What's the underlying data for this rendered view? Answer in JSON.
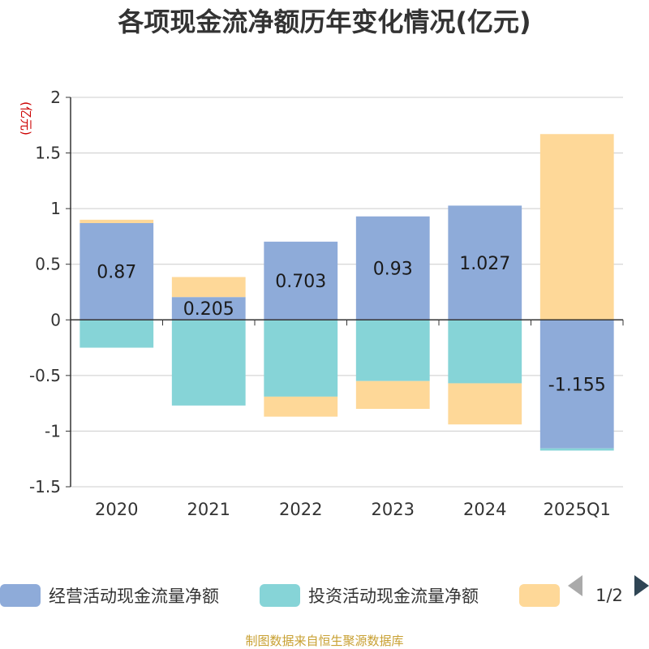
{
  "chart_data": {
    "type": "bar",
    "stacked": true,
    "title": "各项现金流净额历年变化情况(亿元)",
    "unit_label": "(亿元)",
    "categories": [
      "2020",
      "2021",
      "2022",
      "2023",
      "2024",
      "2025Q1"
    ],
    "series": [
      {
        "name": "经营活动现金流量净额",
        "color": "#8eabd9",
        "values": [
          0.87,
          0.205,
          0.703,
          0.93,
          1.027,
          -1.155
        ],
        "labels": [
          "0.87",
          "0.205",
          "0.703",
          "0.93",
          "1.027",
          "-1.155"
        ]
      },
      {
        "name": "投资活动现金流量净额",
        "color": "#86d4d7",
        "values": [
          -0.25,
          -0.77,
          -0.69,
          -0.55,
          -0.57,
          -0.02
        ]
      },
      {
        "name": "",
        "color": "#fed898",
        "values": [
          0.03,
          0.18,
          -0.18,
          -0.25,
          -0.37,
          1.67
        ]
      }
    ],
    "yticks": [
      "2",
      "1.5",
      "1",
      "0.5",
      "0",
      "-0.5",
      "-1",
      "-1.5"
    ],
    "ylim": [
      -1.5,
      2
    ],
    "grid": true,
    "legend": {
      "position": "bottom",
      "page": "1/2"
    },
    "source": "制图数据来自恒生聚源数据库"
  }
}
